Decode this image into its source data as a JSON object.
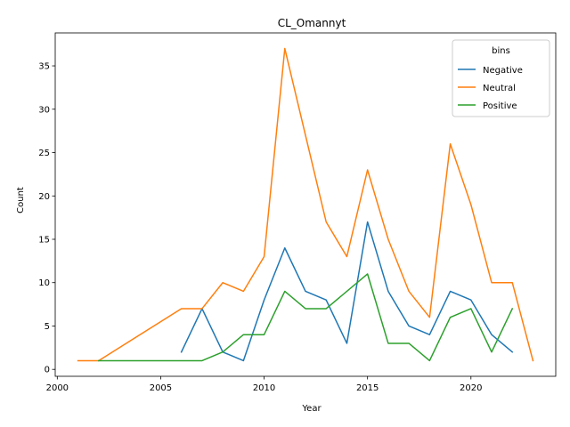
{
  "chart_data": {
    "type": "line",
    "title": "CL_Omannyt",
    "xlabel": "Year",
    "ylabel": "Count",
    "xlim": [
      1999.9,
      2024.1
    ],
    "ylim": [
      -0.8,
      38.8
    ],
    "xticks": [
      2000,
      2005,
      2010,
      2015,
      2020
    ],
    "yticks": [
      0,
      5,
      10,
      15,
      20,
      25,
      30,
      35
    ],
    "grid": false,
    "legend": {
      "title": "bins",
      "placement": "top-right"
    },
    "series": [
      {
        "name": "Negative",
        "color": "#1f77b4",
        "x": [
          2006,
          2007,
          2008,
          2009,
          2010,
          2011,
          2012,
          2013,
          2014,
          2015,
          2016,
          2017,
          2018,
          2019,
          2020,
          2021,
          2022
        ],
        "y": [
          2,
          7,
          2,
          1,
          8,
          14,
          9,
          8,
          3,
          17,
          9,
          5,
          4,
          9,
          8,
          4,
          2
        ]
      },
      {
        "name": "Neutral",
        "color": "#ff7f0e",
        "x": [
          2001,
          2002,
          2006,
          2007,
          2008,
          2009,
          2010,
          2011,
          2012,
          2013,
          2014,
          2015,
          2016,
          2017,
          2018,
          2019,
          2020,
          2021,
          2022,
          2023
        ],
        "y": [
          1,
          1,
          7,
          7,
          10,
          9,
          13,
          37,
          27,
          17,
          13,
          23,
          15,
          9,
          6,
          26,
          19,
          10,
          10,
          1
        ]
      },
      {
        "name": "Positive",
        "color": "#2ca02c",
        "x": [
          2002,
          2007,
          2008,
          2009,
          2010,
          2011,
          2012,
          2013,
          2015,
          2016,
          2017,
          2018,
          2019,
          2020,
          2021,
          2022
        ],
        "y": [
          1,
          1,
          2,
          4,
          4,
          9,
          7,
          7,
          11,
          3,
          3,
          1,
          6,
          7,
          2,
          7
        ]
      }
    ]
  }
}
